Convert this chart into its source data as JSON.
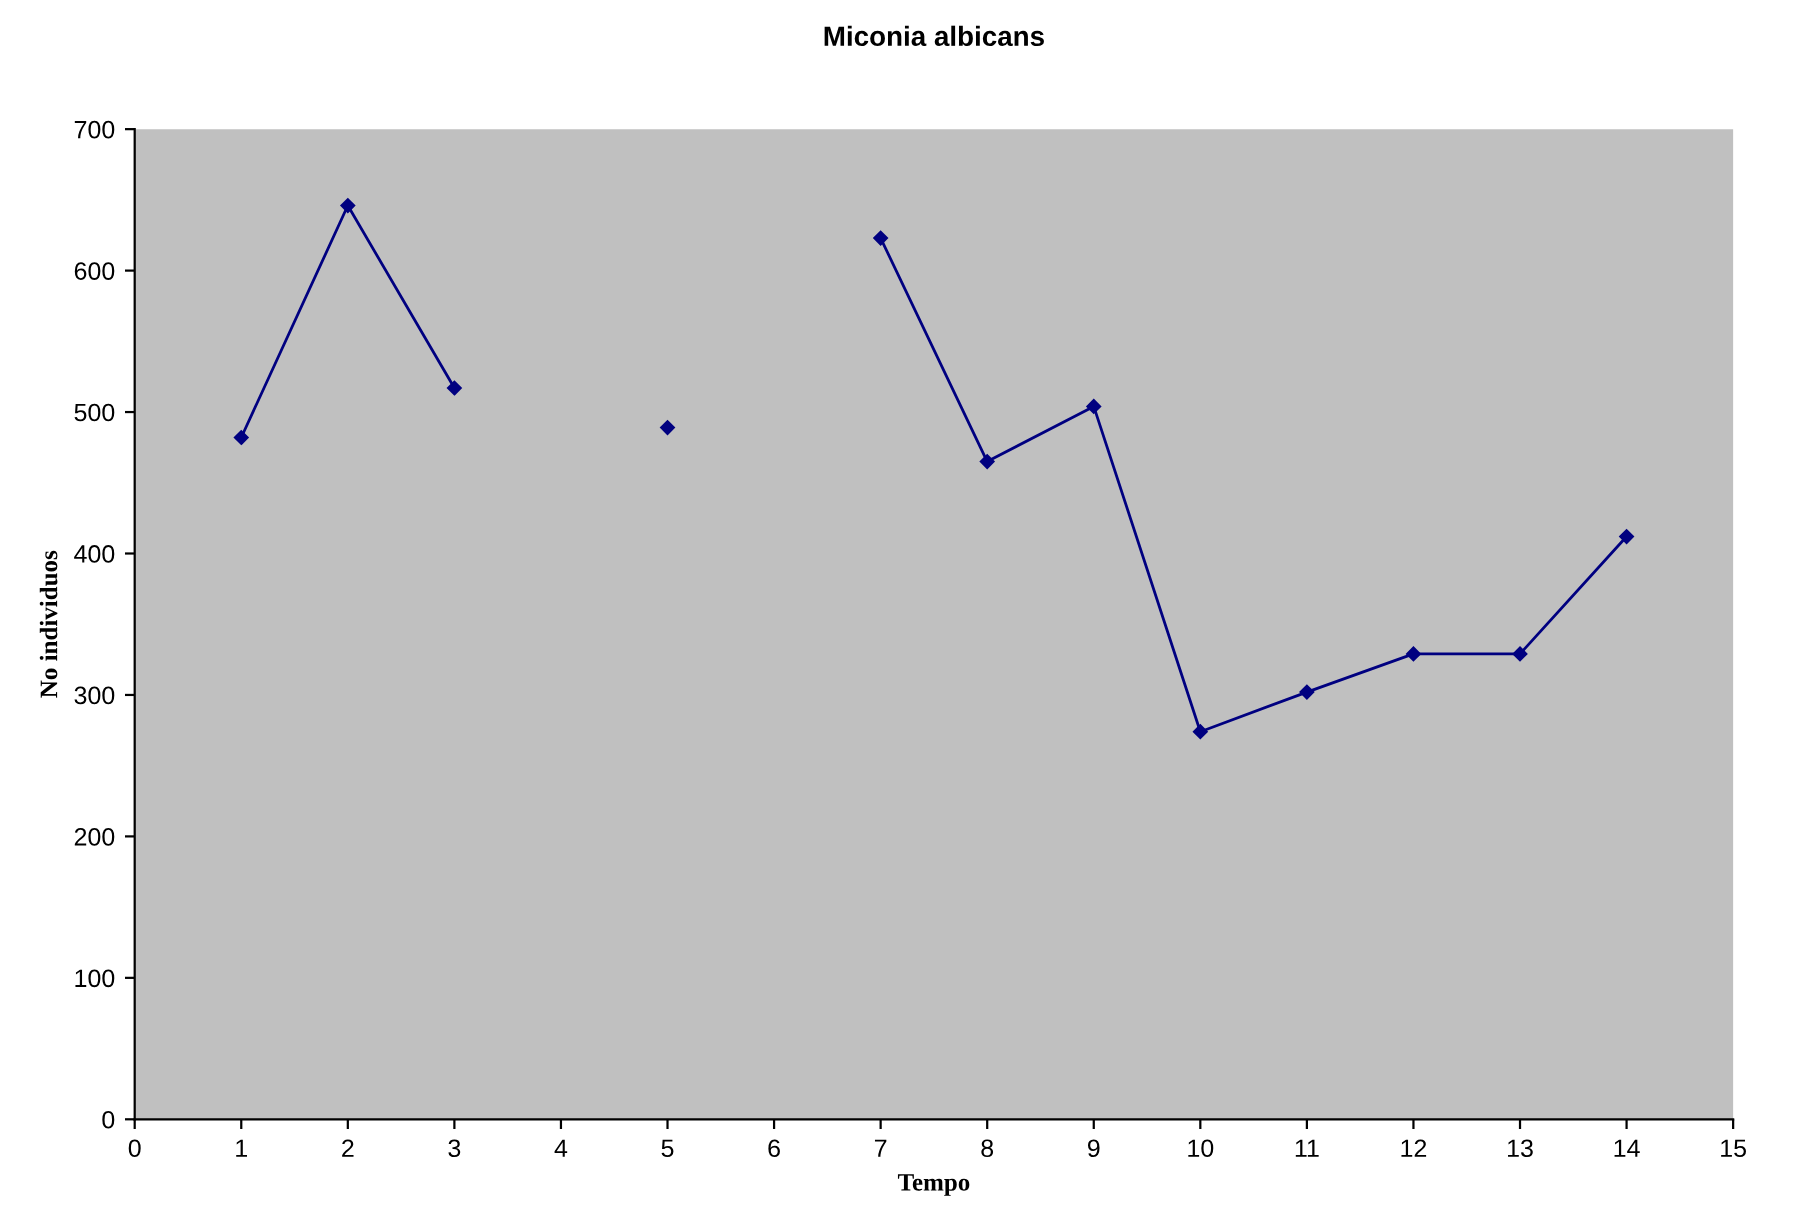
{
  "chart_data": {
    "type": "line",
    "title": "Miconia albicans",
    "xlabel": "Tempo",
    "ylabel": "No individuos",
    "x": [
      1,
      2,
      3,
      4,
      5,
      6,
      7,
      8,
      9,
      10,
      11,
      12,
      13,
      14
    ],
    "series": [
      {
        "color": "#000080",
        "values": [
          482,
          646,
          517,
          null,
          489,
          null,
          623,
          465,
          504,
          274,
          302,
          329,
          329,
          412
        ]
      }
    ],
    "xlim": [
      0,
      15
    ],
    "xticks": [
      0,
      1,
      2,
      3,
      4,
      5,
      6,
      7,
      8,
      9,
      10,
      11,
      12,
      13,
      14,
      15
    ],
    "ylim": [
      0,
      700
    ],
    "yticks": [
      0,
      100,
      200,
      300,
      400,
      500,
      600,
      700
    ],
    "grid": false,
    "legend": false,
    "marker": "diamond",
    "line_style": "solid"
  }
}
